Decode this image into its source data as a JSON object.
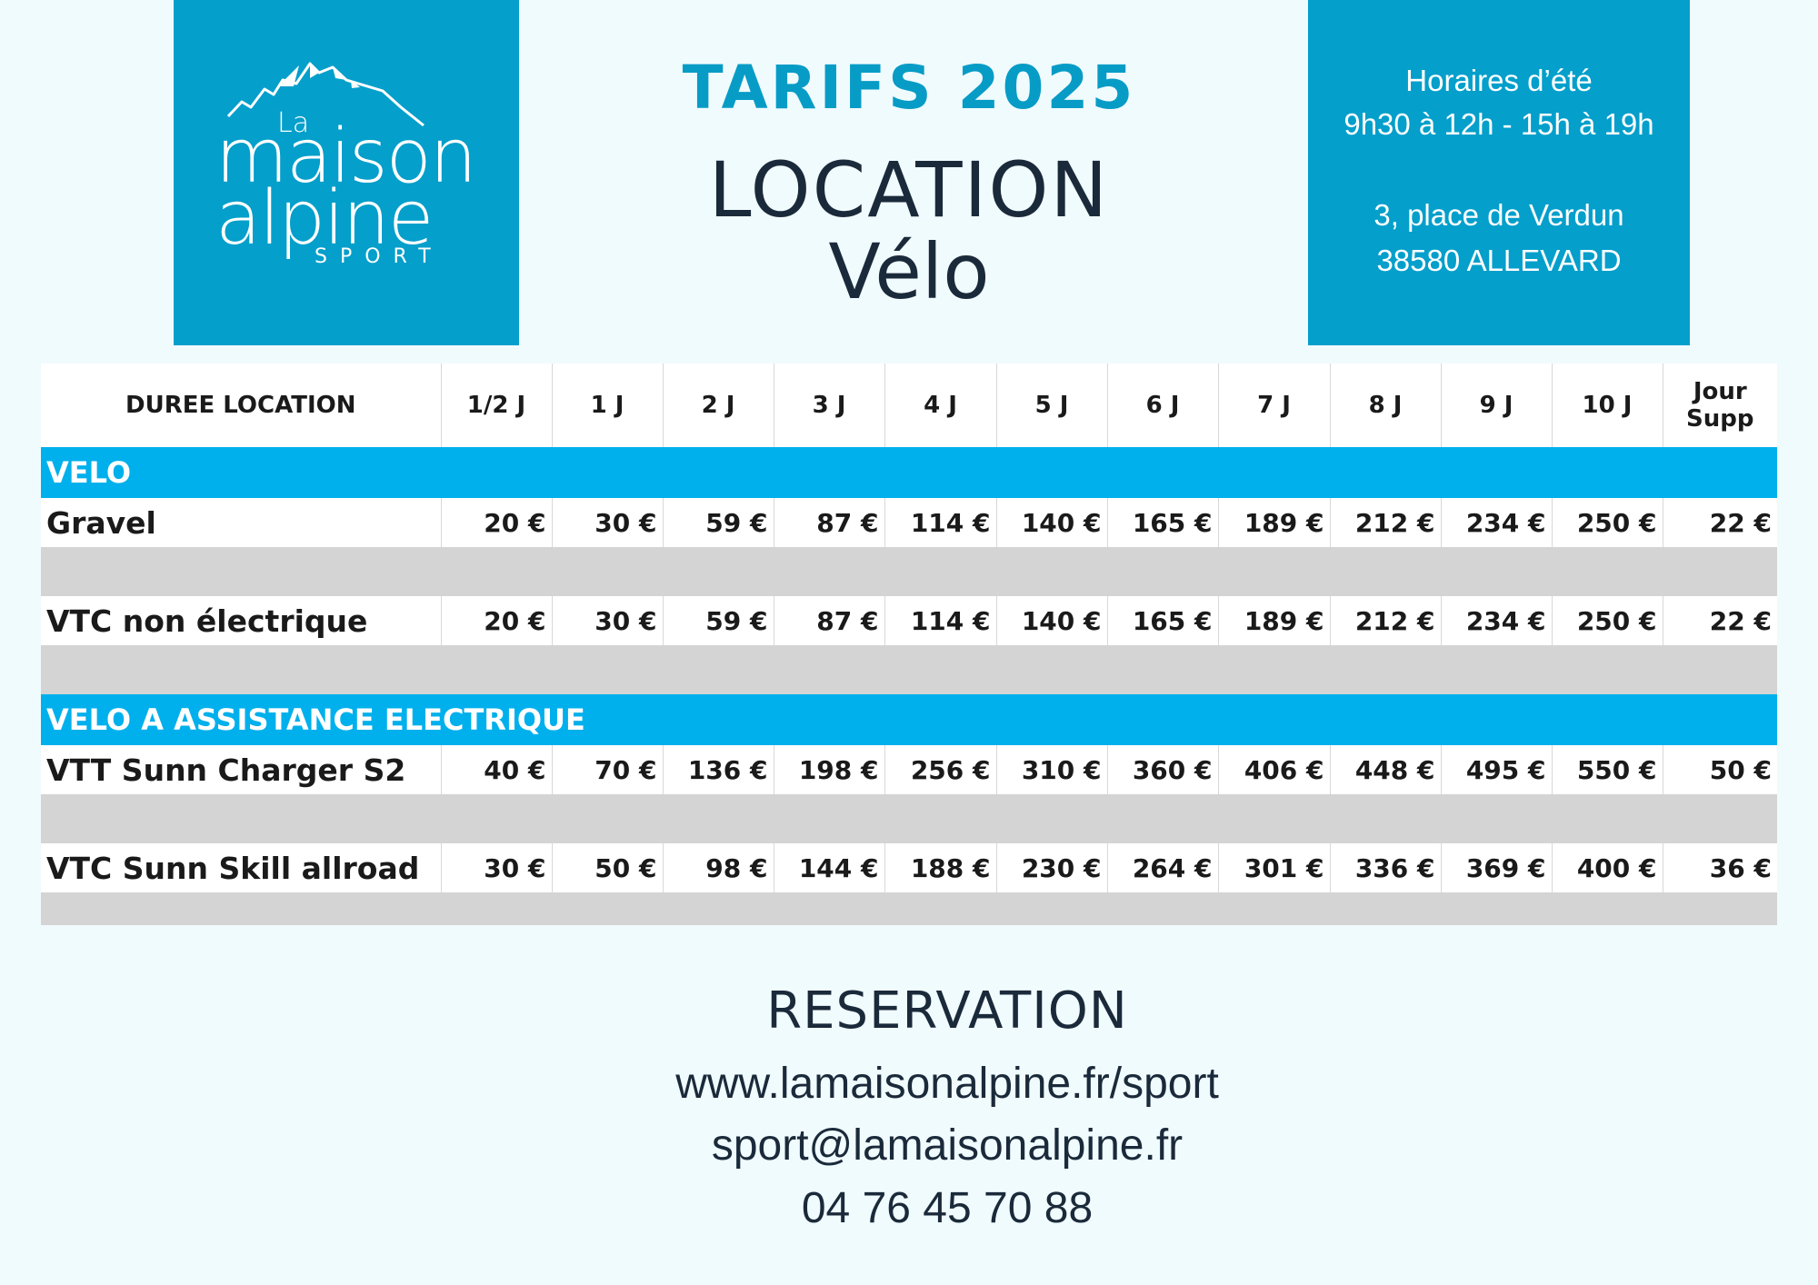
{
  "logo": {
    "la": "La",
    "maison": "maison",
    "alpine": "alpine",
    "sport": "SPORT"
  },
  "header": {
    "tarifs": "TARIFS 2025",
    "location": "LOCATION",
    "velo": "Vélo"
  },
  "info": {
    "hours_label": "Horaires d’été",
    "hours": "9h30 à 12h - 15h à 19h",
    "address1": "3, place de Verdun",
    "address2": "38580 ALLEVARD"
  },
  "table": {
    "headers": [
      "DUREE LOCATION",
      "1/2 J",
      "1 J",
      "2 J",
      "3 J",
      "4 J",
      "5 J",
      "6 J",
      "7 J",
      "8 J",
      "9 J",
      "10 J",
      "Jour",
      "Supp"
    ],
    "sections": [
      {
        "label": "VELO",
        "rows": [
          {
            "name": "Gravel",
            "prices": [
              "20 €",
              "30 €",
              "59 €",
              "87 €",
              "114 €",
              "140 €",
              "165 €",
              "189 €",
              "212 €",
              "234 €",
              "250 €",
              "22 €"
            ]
          },
          {
            "name": "VTC non électrique",
            "prices": [
              "20 €",
              "30 €",
              "59 €",
              "87 €",
              "114 €",
              "140 €",
              "165 €",
              "189 €",
              "212 €",
              "234 €",
              "250 €",
              "22 €"
            ]
          }
        ]
      },
      {
        "label": "VELO A ASSISTANCE ELECTRIQUE",
        "rows": [
          {
            "name": "VTT  Sunn Charger S2",
            "prices": [
              "40 €",
              "70 €",
              "136 €",
              "198 €",
              "256 €",
              "310 €",
              "360 €",
              "406 €",
              "448 €",
              "495 €",
              "550 €",
              "50 €"
            ]
          },
          {
            "name": "VTC Sunn Skill allroad",
            "prices": [
              "30 €",
              "50 €",
              "98 €",
              "144 €",
              "188 €",
              "230 €",
              "264 €",
              "301 €",
              "336 €",
              "369 €",
              "400 €",
              "36 €"
            ]
          }
        ]
      }
    ]
  },
  "reservation": {
    "title": "RESERVATION",
    "website": "www.lamaisonalpine.fr/sport",
    "email": "sport@lamaisonalpine.fr",
    "phone": "04 76 45 70 88"
  },
  "colors": {
    "brand": "#049fcb",
    "section": "#00b0ec",
    "background": "#f0fbfe",
    "gap": "#d4d4d4"
  }
}
